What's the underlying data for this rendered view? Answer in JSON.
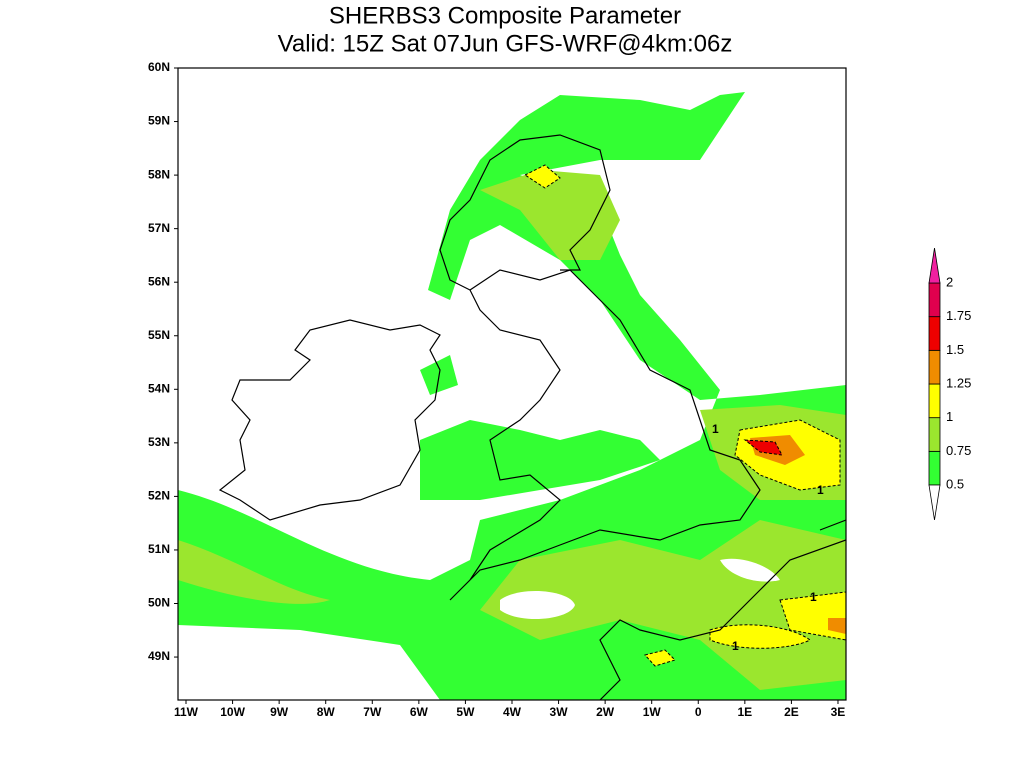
{
  "title": [
    "SHERBS3 Composite Parameter",
    "Valid: 15Z Sat 07Jun GFS-WRF@4km:06z"
  ],
  "lat_labels": [
    "60N",
    "59N",
    "58N",
    "57N",
    "56N",
    "55N",
    "54N",
    "53N",
    "52N",
    "51N",
    "50N",
    "49N"
  ],
  "lon_labels": [
    "11W",
    "10W",
    "9W",
    "8W",
    "7W",
    "6W",
    "5W",
    "4W",
    "3W",
    "2W",
    "1W",
    "0",
    "1E",
    "2E",
    "3E"
  ],
  "colorbar": {
    "levels": [
      0.5,
      0.75,
      1,
      1.25,
      1.5,
      1.75,
      2
    ],
    "band_colors": [
      "#33ff33",
      "#9be62e",
      "#ffff00",
      "#f08c00",
      "#ee0000",
      "#e0004e"
    ],
    "over_color": "#f020a0",
    "under_color": "#ffffff"
  },
  "contour_labels": [
    "1",
    "1",
    "1",
    "1"
  ]
}
